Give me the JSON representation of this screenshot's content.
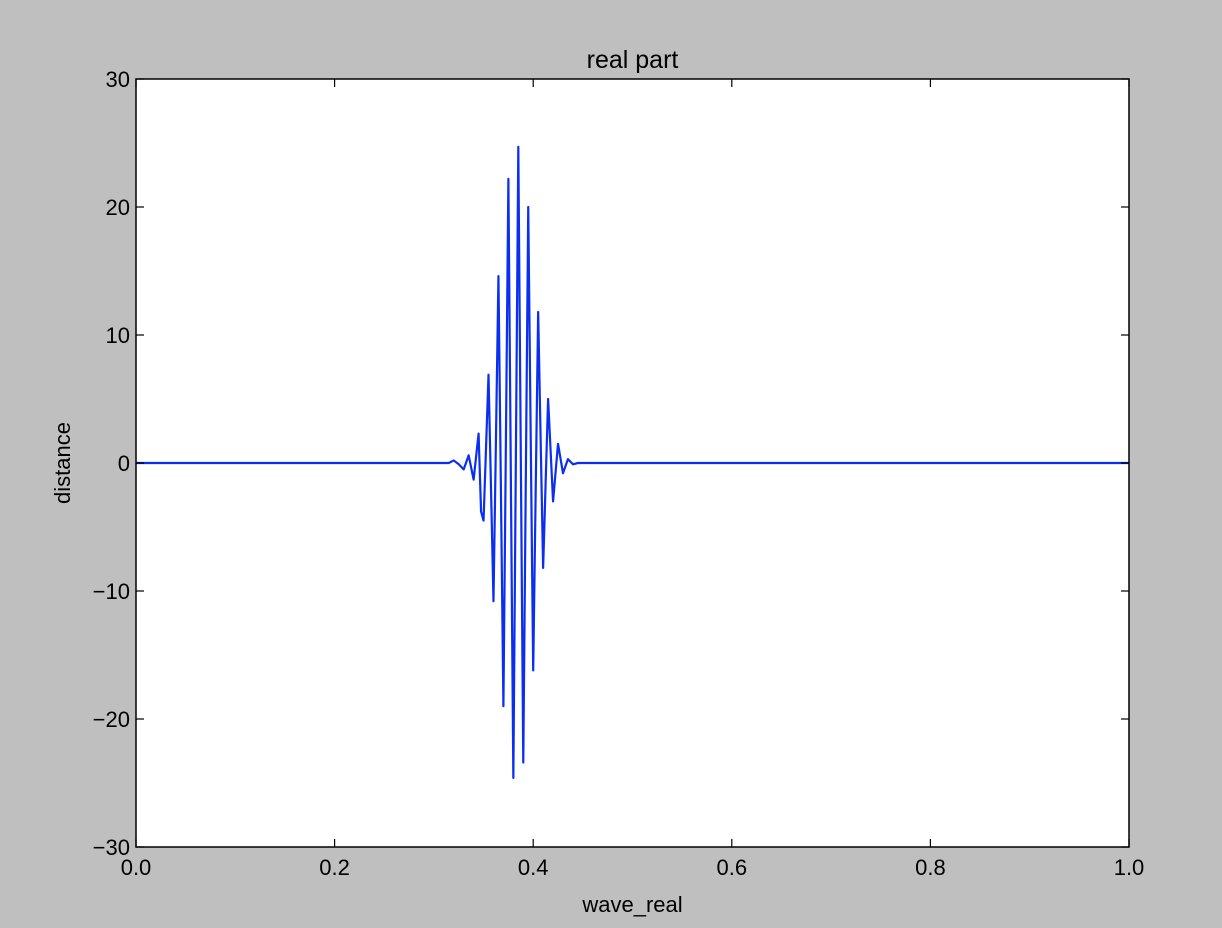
{
  "chart_data": {
    "type": "line",
    "title": "real part",
    "xlabel": "wave_real",
    "ylabel": "distance",
    "xlim": [
      0.0,
      1.0
    ],
    "ylim": [
      -30,
      30
    ],
    "grid": false,
    "xticks": [
      0.0,
      0.2,
      0.4,
      0.6,
      0.8,
      1.0
    ],
    "xtick_labels": [
      "0.0",
      "0.2",
      "0.4",
      "0.6",
      "0.8",
      "1.0"
    ],
    "yticks": [
      -30,
      -20,
      -10,
      0,
      10,
      20,
      30
    ],
    "ytick_labels": [
      "−30",
      "−20",
      "−10",
      "0",
      "10",
      "20",
      "30"
    ],
    "background": "#bfbfbf",
    "axes_color": "#ffffff",
    "line_color": "#0b2ff0",
    "series": [
      {
        "x": [
          0.0,
          0.3,
          0.315,
          0.32,
          0.325,
          0.33,
          0.335,
          0.34,
          0.345,
          0.3475,
          0.35,
          0.355,
          0.36,
          0.365,
          0.37,
          0.375,
          0.38,
          0.385,
          0.39,
          0.395,
          0.4,
          0.405,
          0.41,
          0.415,
          0.42,
          0.425,
          0.43,
          0.435,
          0.44,
          0.445,
          0.45,
          0.455,
          0.46,
          0.465,
          0.47,
          0.475,
          0.48,
          0.5,
          1.0
        ],
        "y": [
          0,
          0,
          0,
          0.2,
          -0.1,
          -0.5,
          0.6,
          -1.3,
          2.3,
          -3.8,
          -4.5,
          6.9,
          -10.8,
          14.6,
          -19.0,
          22.2,
          -24.6,
          24.7,
          -23.4,
          20.0,
          -16.2,
          11.8,
          -8.2,
          5.0,
          -3.0,
          1.5,
          -0.8,
          0.3,
          -0.1,
          0,
          0,
          0,
          0,
          0,
          0,
          0,
          0,
          0,
          0
        ]
      }
    ]
  }
}
